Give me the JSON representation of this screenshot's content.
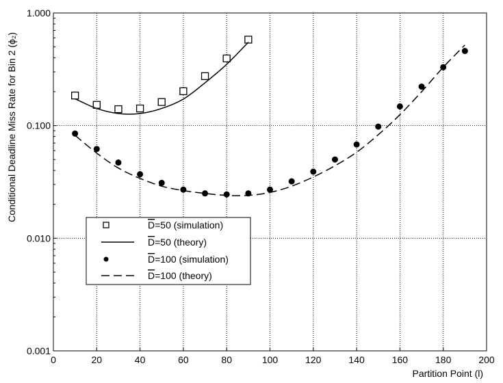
{
  "chart_data": {
    "type": "scatter",
    "title": "",
    "xlabel": "Partition Point (l)",
    "ylabel": "Conditional Deadline Miss Rate for Bin 2 (ϕ₂)",
    "xlim": [
      0,
      200
    ],
    "ylim": [
      0.001,
      1.0
    ],
    "yscale": "log",
    "grid": "dotted",
    "legend_position": "bottom-left",
    "x_ticks": [
      0,
      20,
      40,
      60,
      80,
      100,
      120,
      140,
      160,
      180,
      200
    ],
    "x_tick_labels": [
      "0",
      "20",
      "40",
      "60",
      "80",
      "100",
      "120",
      "140",
      "160",
      "180",
      "200"
    ],
    "y_ticks": [
      0.001,
      0.01,
      0.1,
      1.0
    ],
    "y_tick_labels": [
      "0.001",
      "0.010",
      "0.100",
      "1.000"
    ],
    "series": [
      {
        "name": "D=50 (simulation)",
        "legend_overline": "D",
        "legend_rest": "=50 (simulation)",
        "style": "open-square",
        "x": [
          10,
          20,
          30,
          40,
          50,
          60,
          70,
          80,
          90
        ],
        "y": [
          0.185,
          0.153,
          0.14,
          0.142,
          0.162,
          0.202,
          0.275,
          0.395,
          0.58
        ]
      },
      {
        "name": "D=50 (theory)",
        "legend_overline": "D",
        "legend_rest": "=50 (theory)",
        "style": "solid-line",
        "x": [
          10,
          20,
          30,
          40,
          50,
          60,
          70,
          80,
          90
        ],
        "y": [
          0.173,
          0.142,
          0.128,
          0.128,
          0.142,
          0.172,
          0.24,
          0.35,
          0.55
        ]
      },
      {
        "name": "D=100 (simulation)",
        "legend_overline": "D",
        "legend_rest": "=100 (simulation)",
        "style": "filled-circle",
        "x": [
          10,
          20,
          30,
          40,
          50,
          60,
          70,
          80,
          90,
          100,
          110,
          120,
          130,
          140,
          150,
          160,
          170,
          180,
          190
        ],
        "y": [
          0.085,
          0.062,
          0.047,
          0.037,
          0.031,
          0.027,
          0.025,
          0.0245,
          0.025,
          0.027,
          0.032,
          0.039,
          0.05,
          0.068,
          0.098,
          0.148,
          0.222,
          0.33,
          0.46
        ]
      },
      {
        "name": "D=100 (theory)",
        "legend_overline": "D",
        "legend_rest": "=100 (theory)",
        "style": "dashed-line",
        "x": [
          10,
          20,
          30,
          40,
          50,
          60,
          70,
          80,
          90,
          100,
          110,
          120,
          130,
          140,
          150,
          160,
          170,
          180,
          190
        ],
        "y": [
          0.082,
          0.057,
          0.042,
          0.034,
          0.029,
          0.0265,
          0.025,
          0.024,
          0.024,
          0.0255,
          0.029,
          0.035,
          0.044,
          0.058,
          0.083,
          0.125,
          0.2,
          0.33,
          0.52
        ]
      }
    ]
  }
}
